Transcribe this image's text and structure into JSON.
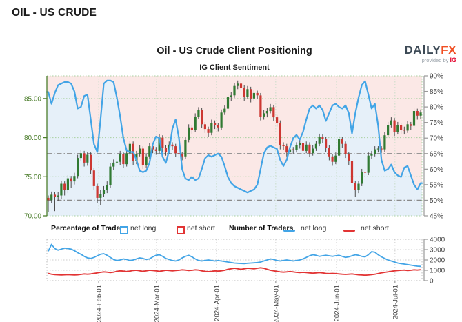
{
  "page": {
    "heading": "OIL - US CRUDE"
  },
  "chart": {
    "title": "Oil - US Crude Client Positioning",
    "subtitle": "IG Client Sentiment",
    "logo": {
      "word_left": "DA",
      "word_right": "LY",
      "word_accent": "FX",
      "tagline": "provided by",
      "tagline_brand": "IG"
    },
    "legend": {
      "percentage_title": "Percentage of Traders",
      "number_title": "Number of Traders",
      "net_long": "net long",
      "net_short": "net short"
    }
  },
  "chart_data": {
    "type": "candlestick+line",
    "title": "Oil - US Crude Client Positioning",
    "subtitle": "IG Client Sentiment",
    "grid": true,
    "colors": {
      "bull": "#317a33",
      "bear": "#cd3732",
      "wick": "#4a4a4a",
      "sentiment_line": "#42a4e6",
      "fill_above": "#fbe8e6",
      "fill_below": "#e6f0f9",
      "long_line": "#42a4e6",
      "short_line": "#e23434",
      "price_axis": "#4b7d2b",
      "grid_green": "#a8d0a0",
      "grid_gray": "#cccccc",
      "threshold": "#8a8a8a",
      "axis_gray": "#999999",
      "tick_text": "#444444"
    },
    "price_axis": {
      "min": 70,
      "max": 87.9,
      "ticks": [
        {
          "v": 70,
          "label": "70.00"
        },
        {
          "v": 75,
          "label": "75.00"
        },
        {
          "v": 80,
          "label": "80.00"
        },
        {
          "v": 85,
          "label": "85.00"
        }
      ]
    },
    "pct_axis": {
      "min": 45,
      "max": 90,
      "threshold_levels": [
        50,
        65
      ],
      "ticks": [
        {
          "v": 45,
          "label": "45%"
        },
        {
          "v": 50,
          "label": "50%"
        },
        {
          "v": 55,
          "label": "55%"
        },
        {
          "v": 60,
          "label": "60%"
        },
        {
          "v": 65,
          "label": "65%"
        },
        {
          "v": 70,
          "label": "70%"
        },
        {
          "v": 75,
          "label": "75%"
        },
        {
          "v": 80,
          "label": "80%"
        },
        {
          "v": 85,
          "label": "85%"
        },
        {
          "v": 90,
          "label": "90%"
        }
      ]
    },
    "count_axis": {
      "min": 0,
      "max": 4000,
      "ticks": [
        {
          "v": 0,
          "label": "0"
        },
        {
          "v": 1000,
          "label": "1000"
        },
        {
          "v": 2000,
          "label": "2000"
        },
        {
          "v": 3000,
          "label": "3000"
        },
        {
          "v": 4000,
          "label": "4000"
        }
      ]
    },
    "x_ticks": [
      {
        "f": 0.138,
        "label": "2024-Feb-01"
      },
      {
        "f": 0.292,
        "label": "2024-Mar-01"
      },
      {
        "f": 0.452,
        "label": "2024-Apr-01"
      },
      {
        "f": 0.61,
        "label": "2024-May-01"
      },
      {
        "f": 0.772,
        "label": "2024-Jun-01"
      },
      {
        "f": 0.928,
        "label": "2024-Jul-01"
      }
    ],
    "sentiment_pct": [
      84.8,
      81,
      84.5,
      87,
      87.5,
      88,
      88,
      87.5,
      85,
      79.5,
      80,
      83.5,
      84,
      76,
      68,
      65.5,
      76,
      87.5,
      88.5,
      88.5,
      88,
      83,
      77,
      70,
      66,
      65.5,
      65.5,
      63,
      59.5,
      59,
      59.5,
      62,
      68,
      70.5,
      70,
      64,
      62,
      66,
      73,
      76,
      70,
      60,
      57,
      56.5,
      57.5,
      56.5,
      57,
      60,
      63.5,
      64.5,
      64,
      64.5,
      65,
      64,
      61,
      57.5,
      55.5,
      54.5,
      54,
      53.5,
      53,
      52.5,
      53,
      53.5,
      55,
      60,
      65,
      67,
      67.5,
      67,
      66.5,
      63,
      61,
      63,
      67,
      70,
      71,
      69.5,
      72,
      76,
      79.5,
      80.5,
      79.5,
      80.5,
      79,
      75.5,
      78,
      80.5,
      81,
      80,
      79.5,
      80.5,
      78,
      71.5,
      78,
      83,
      87,
      88.3,
      84,
      79.5,
      81,
      74,
      63,
      59.5,
      60,
      61.5,
      59,
      58,
      57.5,
      60.5,
      61,
      58,
      55,
      53.5,
      55.5
    ],
    "candles": [
      [
        72.3,
        72.6,
        70.5,
        72.0
      ],
      [
        72.0,
        73.1,
        71.6,
        72.7
      ],
      [
        72.7,
        73.0,
        70.6,
        72.4
      ],
      [
        72.4,
        73.0,
        71.9,
        72.6
      ],
      [
        72.6,
        74.5,
        72.2,
        74.1
      ],
      [
        74.1,
        74.4,
        72.6,
        73.3
      ],
      [
        73.3,
        75.2,
        72.9,
        74.8
      ],
      [
        74.8,
        75.1,
        73.6,
        74.4
      ],
      [
        74.4,
        75.5,
        74.0,
        75.1
      ],
      [
        75.1,
        77.8,
        74.8,
        77.4
      ],
      [
        77.4,
        78.4,
        77.0,
        78.0
      ],
      [
        78.0,
        78.3,
        76.3,
        76.8
      ],
      [
        76.8,
        78.2,
        76.4,
        77.8
      ],
      [
        77.8,
        78.1,
        75.3,
        75.8
      ],
      [
        75.8,
        76.1,
        73.3,
        73.8
      ],
      [
        73.8,
        74.1,
        71.6,
        72.3
      ],
      [
        72.3,
        73.3,
        71.4,
        72.8
      ],
      [
        72.8,
        73.8,
        72.4,
        73.3
      ],
      [
        73.3,
        74.4,
        72.9,
        73.9
      ],
      [
        73.9,
        76.7,
        73.6,
        76.3
      ],
      [
        76.3,
        77.2,
        75.9,
        76.8
      ],
      [
        76.8,
        77.4,
        76.3,
        76.9
      ],
      [
        76.9,
        78.3,
        76.5,
        77.9
      ],
      [
        77.9,
        78.2,
        76.1,
        76.6
      ],
      [
        76.6,
        78.4,
        76.3,
        78.0
      ],
      [
        78.0,
        79.6,
        77.7,
        79.2
      ],
      [
        79.2,
        79.5,
        76.5,
        77.0
      ],
      [
        77.0,
        78.3,
        76.6,
        77.9
      ],
      [
        77.9,
        79.0,
        77.6,
        78.6
      ],
      [
        78.6,
        78.9,
        76.0,
        76.5
      ],
      [
        76.5,
        78.0,
        76.1,
        77.6
      ],
      [
        77.6,
        79.3,
        77.3,
        78.9
      ],
      [
        78.9,
        79.2,
        78.0,
        78.5
      ],
      [
        78.5,
        78.8,
        77.8,
        78.3
      ],
      [
        78.3,
        80.4,
        78.0,
        80.0
      ],
      [
        80.0,
        80.3,
        78.2,
        78.7
      ],
      [
        78.7,
        79.0,
        77.7,
        78.2
      ],
      [
        78.2,
        79.5,
        77.9,
        79.1
      ],
      [
        79.1,
        79.4,
        78.4,
        78.9
      ],
      [
        78.9,
        79.2,
        77.5,
        78.0
      ],
      [
        78.0,
        78.4,
        77.4,
        77.9
      ],
      [
        77.9,
        78.2,
        77.1,
        77.6
      ],
      [
        77.6,
        80.1,
        77.3,
        79.7
      ],
      [
        79.7,
        81.7,
        79.4,
        81.3
      ],
      [
        81.3,
        81.6,
        80.5,
        81.0
      ],
      [
        81.0,
        83.1,
        80.7,
        82.7
      ],
      [
        82.7,
        83.9,
        82.4,
        83.5
      ],
      [
        83.5,
        83.8,
        81.2,
        81.7
      ],
      [
        81.7,
        82.0,
        80.6,
        81.1
      ],
      [
        81.1,
        81.4,
        80.1,
        80.6
      ],
      [
        80.6,
        82.3,
        80.3,
        81.9
      ],
      [
        81.9,
        82.2,
        81.1,
        81.6
      ],
      [
        81.6,
        81.9,
        80.8,
        81.3
      ],
      [
        81.3,
        83.6,
        81.0,
        83.2
      ],
      [
        83.2,
        84.1,
        82.9,
        83.7
      ],
      [
        83.7,
        85.6,
        83.4,
        85.2
      ],
      [
        85.2,
        85.8,
        84.7,
        85.4
      ],
      [
        85.4,
        87.0,
        85.1,
        86.6
      ],
      [
        86.6,
        87.3,
        86.2,
        86.9
      ],
      [
        86.9,
        87.2,
        85.9,
        86.4
      ],
      [
        86.4,
        86.7,
        84.7,
        85.2
      ],
      [
        85.2,
        86.6,
        84.9,
        86.2
      ],
      [
        86.2,
        86.5,
        84.5,
        85.0
      ],
      [
        85.0,
        86.1,
        84.7,
        85.7
      ],
      [
        85.7,
        86.0,
        84.9,
        85.4
      ],
      [
        85.4,
        85.7,
        82.2,
        82.7
      ],
      [
        82.7,
        83.5,
        82.3,
        83.1
      ],
      [
        83.1,
        83.8,
        82.6,
        83.4
      ],
      [
        83.4,
        84.3,
        83.1,
        83.9
      ],
      [
        83.9,
        84.2,
        82.1,
        82.6
      ],
      [
        82.6,
        82.9,
        81.4,
        81.9
      ],
      [
        81.9,
        82.2,
        78.5,
        79.0
      ],
      [
        79.0,
        79.4,
        78.4,
        78.9
      ],
      [
        78.9,
        79.2,
        77.6,
        78.1
      ],
      [
        78.1,
        78.9,
        77.7,
        78.5
      ],
      [
        78.5,
        78.8,
        77.9,
        78.4
      ],
      [
        78.4,
        79.4,
        78.1,
        79.0
      ],
      [
        79.0,
        79.7,
        78.6,
        79.3
      ],
      [
        79.3,
        79.6,
        77.8,
        78.3
      ],
      [
        78.3,
        79.5,
        78.0,
        79.1
      ],
      [
        79.1,
        79.4,
        77.5,
        78.0
      ],
      [
        78.0,
        79.0,
        77.7,
        78.6
      ],
      [
        78.6,
        79.6,
        78.3,
        79.2
      ],
      [
        79.2,
        80.5,
        78.9,
        80.1
      ],
      [
        80.1,
        80.4,
        79.3,
        79.8
      ],
      [
        79.8,
        80.1,
        78.2,
        78.7
      ],
      [
        78.7,
        79.0,
        77.1,
        77.6
      ],
      [
        77.6,
        77.9,
        76.4,
        76.9
      ],
      [
        76.9,
        78.1,
        76.6,
        77.7
      ],
      [
        77.7,
        80.2,
        77.4,
        79.8
      ],
      [
        79.8,
        80.1,
        78.7,
        79.2
      ],
      [
        79.2,
        79.5,
        77.4,
        77.9
      ],
      [
        77.9,
        78.2,
        76.5,
        77.0
      ],
      [
        77.0,
        77.3,
        73.7,
        74.2
      ],
      [
        74.2,
        74.5,
        72.4,
        73.3
      ],
      [
        73.3,
        74.5,
        72.9,
        74.1
      ],
      [
        74.1,
        76.0,
        73.8,
        75.6
      ],
      [
        75.6,
        75.9,
        75.0,
        75.5
      ],
      [
        75.5,
        78.1,
        75.2,
        77.7
      ],
      [
        77.7,
        78.3,
        77.3,
        77.9
      ],
      [
        77.9,
        78.9,
        77.6,
        78.5
      ],
      [
        78.5,
        78.9,
        78.1,
        78.6
      ],
      [
        78.6,
        78.9,
        78.0,
        78.5
      ],
      [
        78.5,
        80.7,
        78.2,
        80.3
      ],
      [
        80.3,
        82.0,
        80.0,
        81.6
      ],
      [
        81.6,
        82.6,
        81.3,
        82.2
      ],
      [
        82.2,
        82.5,
        80.2,
        80.7
      ],
      [
        80.7,
        82.0,
        80.4,
        81.6
      ],
      [
        81.6,
        81.9,
        80.5,
        81.0
      ],
      [
        81.0,
        81.4,
        80.4,
        80.9
      ],
      [
        80.9,
        82.1,
        80.6,
        81.7
      ],
      [
        81.7,
        82.0,
        81.0,
        81.5
      ],
      [
        81.5,
        83.8,
        81.2,
        83.4
      ],
      [
        83.4,
        83.7,
        82.3,
        82.8
      ],
      [
        82.8,
        83.6,
        82.4,
        83.2
      ]
    ],
    "net_long_count": [
      2850,
      3500,
      3100,
      2950,
      3050,
      3150,
      3100,
      3050,
      2900,
      2700,
      2550,
      2350,
      2200,
      2150,
      2250,
      2400,
      2550,
      2600,
      2450,
      2250,
      2050,
      1950,
      2000,
      2100,
      2050,
      1950,
      2000,
      2100,
      2200,
      2150,
      2050,
      2100,
      2300,
      2450,
      2500,
      2350,
      2150,
      2050,
      1950,
      1900,
      2000,
      2200,
      2350,
      2450,
      2300,
      2100,
      1950,
      1900,
      1950,
      2000,
      1950,
      1900,
      1950,
      1900,
      1850,
      1800,
      1750,
      1700,
      1680,
      1660,
      1650,
      1680,
      1700,
      1720,
      1750,
      1800,
      1900,
      2000,
      2100,
      2050,
      1950,
      1900,
      1950,
      2000,
      1950,
      1900,
      1950,
      2000,
      2100,
      2250,
      2400,
      2500,
      2450,
      2350,
      2400,
      2450,
      2400,
      2350,
      2400,
      2450,
      2350,
      2250,
      2300,
      2400,
      2500,
      2450,
      2350,
      2300,
      2500,
      2800,
      2750,
      2500,
      2300,
      2150,
      2000,
      1900,
      1800,
      1700,
      1650,
      1600,
      1550,
      1500,
      1450,
      1400,
      1380
    ],
    "net_short_count": [
      700,
      620,
      580,
      560,
      540,
      560,
      580,
      560,
      540,
      560,
      600,
      650,
      620,
      650,
      700,
      750,
      800,
      850,
      820,
      780,
      820,
      900,
      950,
      920,
      880,
      920,
      980,
      1000,
      950,
      900,
      950,
      1000,
      980,
      950,
      900,
      950,
      1000,
      980,
      950,
      980,
      1000,
      1050,
      1020,
      980,
      1000,
      1050,
      1020,
      950,
      900,
      870,
      900,
      950,
      920,
      950,
      1000,
      1100,
      1150,
      1200,
      1150,
      1100,
      1150,
      1200,
      1180,
      1150,
      1200,
      1250,
      1200,
      1100,
      1000,
      950,
      900,
      850,
      820,
      850,
      880,
      850,
      800,
      780,
      800,
      780,
      750,
      720,
      750,
      780,
      750,
      700,
      680,
      700,
      680,
      650,
      620,
      600,
      620,
      650,
      600,
      560,
      540,
      520,
      540,
      580,
      620,
      680,
      750,
      800,
      850,
      900,
      950,
      980,
      1000,
      1020,
      980,
      1000,
      1050,
      1020,
      1060
    ]
  }
}
